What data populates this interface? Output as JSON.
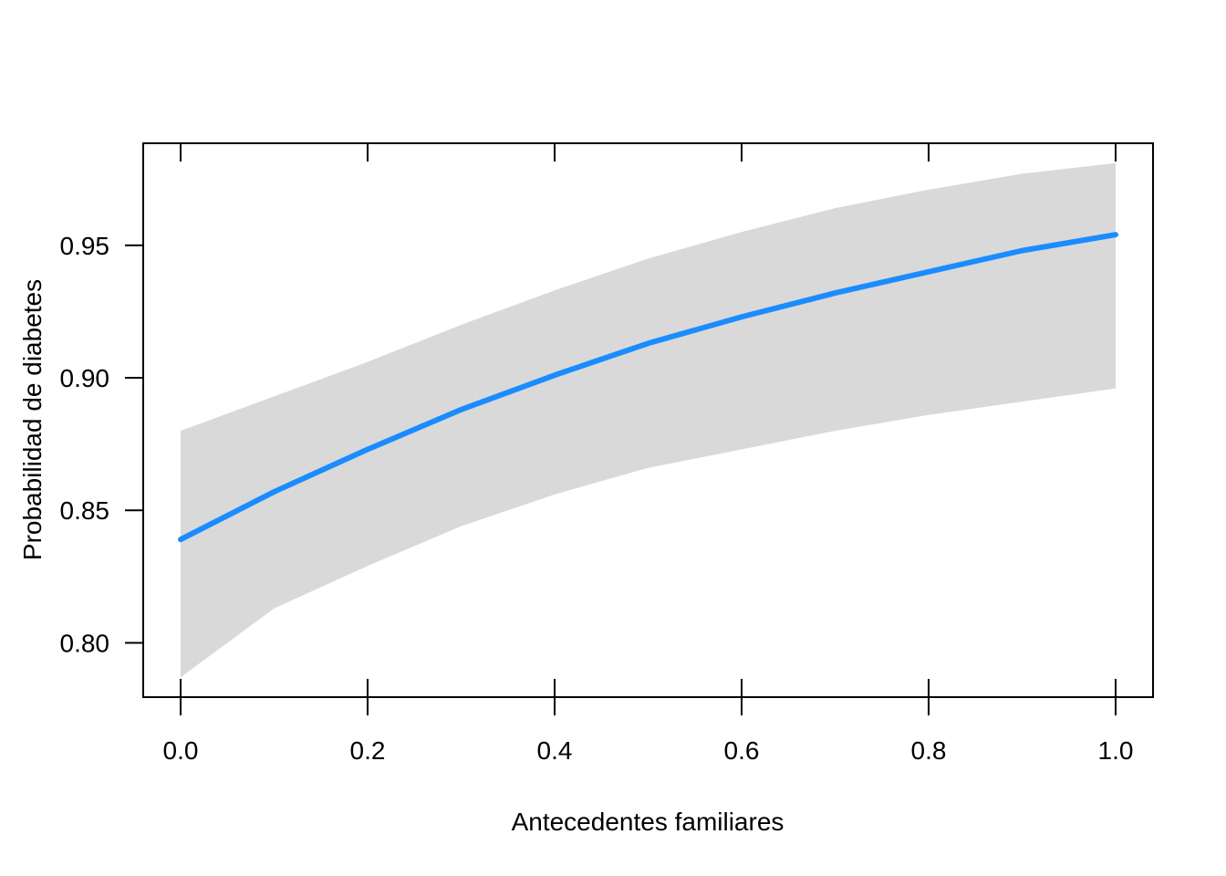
{
  "chart_data": {
    "type": "line",
    "title": "",
    "xlabel": "Antecedentes familiares",
    "ylabel": "Probabilidad de diabetes",
    "xlim": [
      -0.04,
      1.04
    ],
    "ylim": [
      0.7795,
      0.9885
    ],
    "x_ticks": [
      0.0,
      0.2,
      0.4,
      0.6,
      0.8,
      1.0
    ],
    "x_tick_labels": [
      "0.0",
      "0.2",
      "0.4",
      "0.6",
      "0.8",
      "1.0"
    ],
    "y_ticks": [
      0.8,
      0.85,
      0.9,
      0.95
    ],
    "y_tick_labels": [
      "0.80",
      "0.85",
      "0.90",
      "0.95"
    ],
    "grid": false,
    "legend": "none",
    "series": [
      {
        "x": [
          0.0,
          0.1,
          0.2,
          0.3,
          0.4,
          0.5,
          0.6,
          0.7,
          0.8,
          0.9,
          1.0
        ],
        "values": [
          0.839,
          0.857,
          0.873,
          0.888,
          0.901,
          0.913,
          0.923,
          0.932,
          0.94,
          0.948,
          0.954
        ],
        "color": "#1a8cff"
      }
    ],
    "confidence_band": {
      "x": [
        0.0,
        0.1,
        0.2,
        0.3,
        0.4,
        0.5,
        0.6,
        0.7,
        0.8,
        0.9,
        1.0
      ],
      "lower": [
        0.787,
        0.813,
        0.829,
        0.844,
        0.856,
        0.866,
        0.873,
        0.88,
        0.886,
        0.891,
        0.896
      ],
      "upper": [
        0.88,
        0.893,
        0.906,
        0.92,
        0.933,
        0.945,
        0.955,
        0.964,
        0.971,
        0.977,
        0.981
      ],
      "color": "#d9d9d9"
    }
  }
}
